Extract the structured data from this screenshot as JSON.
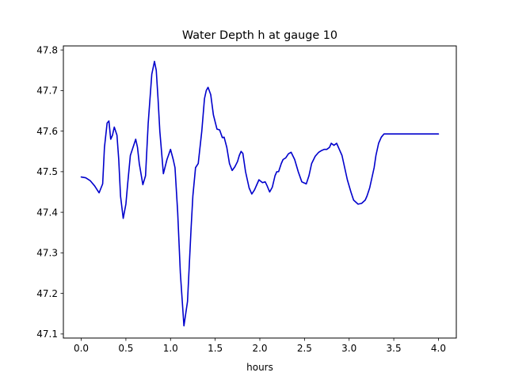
{
  "chart_data": {
    "type": "line",
    "title": "Water Depth h at gauge 10",
    "xlabel": "hours",
    "ylabel": "",
    "xlim": [
      -0.2,
      4.2
    ],
    "ylim": [
      47.09,
      47.81
    ],
    "xticks": [
      0.0,
      0.5,
      1.0,
      1.5,
      2.0,
      2.5,
      3.0,
      3.5,
      4.0
    ],
    "xtick_labels": [
      "0.0",
      "0.5",
      "1.0",
      "1.5",
      "2.0",
      "2.5",
      "3.0",
      "3.5",
      "4.0"
    ],
    "yticks": [
      47.1,
      47.2,
      47.3,
      47.4,
      47.5,
      47.6,
      47.7,
      47.8
    ],
    "ytick_labels": [
      "47.1",
      "47.2",
      "47.3",
      "47.4",
      "47.5",
      "47.6",
      "47.7",
      "47.8"
    ],
    "grid": false,
    "line_color": "#0000cc",
    "series": [
      {
        "x": [
          0.0,
          0.05,
          0.1,
          0.15,
          0.2,
          0.24,
          0.26,
          0.29,
          0.31,
          0.33,
          0.35,
          0.37,
          0.4,
          0.42,
          0.44,
          0.47,
          0.5,
          0.52,
          0.55,
          0.58,
          0.61,
          0.63,
          0.65,
          0.69,
          0.72,
          0.75,
          0.79,
          0.82,
          0.84,
          0.86,
          0.88,
          0.92,
          0.96,
          1.0,
          1.03,
          1.05,
          1.08,
          1.11,
          1.15,
          1.19,
          1.21,
          1.23,
          1.25,
          1.28,
          1.31,
          1.35,
          1.38,
          1.4,
          1.42,
          1.45,
          1.48,
          1.52,
          1.55,
          1.58,
          1.6,
          1.63,
          1.66,
          1.69,
          1.72,
          1.75,
          1.77,
          1.79,
          1.81,
          1.84,
          1.88,
          1.91,
          1.94,
          1.97,
          1.99,
          2.03,
          2.06,
          2.08,
          2.11,
          2.14,
          2.17,
          2.19,
          2.21,
          2.24,
          2.26,
          2.29,
          2.32,
          2.35,
          2.39,
          2.43,
          2.47,
          2.52,
          2.55,
          2.58,
          2.62,
          2.66,
          2.69,
          2.72,
          2.75,
          2.78,
          2.8,
          2.83,
          2.86,
          2.89,
          2.92,
          2.95,
          2.98,
          3.02,
          3.05,
          3.1,
          3.14,
          3.18,
          3.2,
          3.23,
          3.25,
          3.28,
          3.3,
          3.33,
          3.36,
          3.39,
          3.42,
          3.45,
          3.48,
          3.52,
          3.55,
          3.59,
          3.63,
          3.67,
          3.7,
          3.74,
          3.79,
          3.84,
          3.88,
          3.92,
          3.96,
          4.0
        ],
        "y": [
          47.487,
          47.485,
          47.478,
          47.465,
          47.448,
          47.47,
          47.56,
          47.62,
          47.625,
          47.58,
          47.59,
          47.61,
          47.59,
          47.53,
          47.44,
          47.385,
          47.42,
          47.47,
          47.54,
          47.56,
          47.58,
          47.56,
          47.52,
          47.468,
          47.49,
          47.62,
          47.74,
          47.772,
          47.75,
          47.68,
          47.6,
          47.495,
          47.53,
          47.555,
          47.53,
          47.51,
          47.4,
          47.25,
          47.12,
          47.18,
          47.27,
          47.36,
          47.44,
          47.51,
          47.52,
          47.6,
          47.68,
          47.7,
          47.708,
          47.69,
          47.64,
          47.605,
          47.603,
          47.584,
          47.585,
          47.56,
          47.52,
          47.503,
          47.512,
          47.525,
          47.54,
          47.55,
          47.545,
          47.5,
          47.46,
          47.445,
          47.455,
          47.47,
          47.48,
          47.473,
          47.475,
          47.466,
          47.45,
          47.462,
          47.49,
          47.5,
          47.5,
          47.52,
          47.53,
          47.534,
          47.544,
          47.548,
          47.53,
          47.5,
          47.475,
          47.47,
          47.49,
          47.52,
          47.538,
          47.548,
          47.552,
          47.555,
          47.555,
          47.56,
          47.57,
          47.565,
          47.57,
          47.555,
          47.54,
          47.51,
          47.48,
          47.45,
          47.43,
          47.42,
          47.422,
          47.43,
          47.44,
          47.46,
          47.48,
          47.51,
          47.54,
          47.57,
          47.585,
          47.593,
          47.593,
          47.593,
          47.593,
          47.593,
          47.593,
          47.593,
          47.593,
          47.593,
          47.593,
          47.593,
          47.593,
          47.593,
          47.593,
          47.593,
          47.593,
          47.593
        ]
      }
    ]
  }
}
